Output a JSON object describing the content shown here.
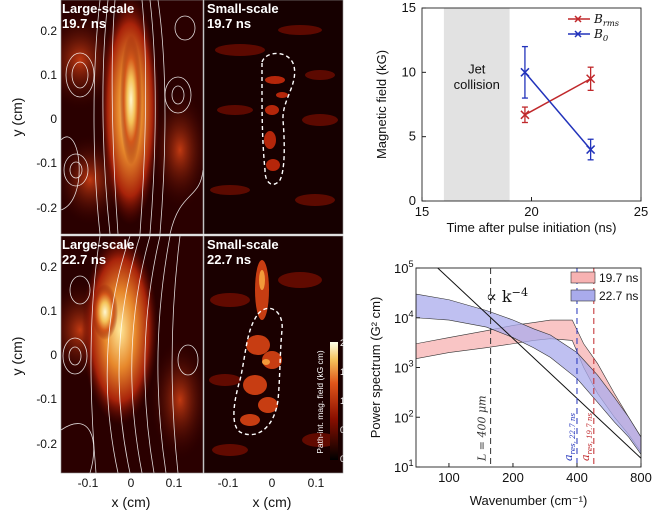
{
  "panels": {
    "top_left": {
      "scale": "Large-scale",
      "time": "19.7 ns"
    },
    "top_mid": {
      "scale": "Small-scale",
      "time": "19.7 ns"
    },
    "bottom_left": {
      "scale": "Large-scale",
      "time": "22.7 ns"
    },
    "bottom_mid": {
      "scale": "Small-scale",
      "time": "22.7 ns"
    }
  },
  "map_axes": {
    "xlabel": "x (cm)",
    "ylabel": "y (cm)",
    "xticks": [
      "-0.1",
      "0",
      "0.1"
    ],
    "yticks": [
      "0.2",
      "0.1",
      "0",
      "-0.1",
      "-0.2"
    ]
  },
  "colorbar": {
    "label": "Path-int. mag. field (kG cm)",
    "ticks": [
      "2",
      "1.5",
      "1",
      "0.5",
      "0"
    ]
  },
  "colors": {
    "red": "#c0282b",
    "blue": "#2233bb",
    "shade": "#e2e2e2",
    "pink": "#f7b2b2",
    "lavender": "#a9abec"
  },
  "chart_data": [
    {
      "type": "line",
      "xlabel": "Time after pulse initiation (ns)",
      "ylabel": "Magnetic field (kG)",
      "xlim": [
        15,
        25
      ],
      "ylim": [
        0,
        15
      ],
      "xticks": [
        15,
        20,
        25
      ],
      "yticks": [
        0,
        5,
        10,
        15
      ],
      "shaded_region": {
        "x": [
          16,
          19
        ],
        "label_line1": "Jet",
        "label_line2": "collision"
      },
      "legend_position": "top-right",
      "series": [
        {
          "name": "B_rms",
          "legend_main": "B",
          "legend_sub": "rms",
          "color": "#c0282b",
          "x": [
            19.7,
            22.7
          ],
          "y": [
            6.7,
            9.5
          ],
          "err": [
            0.6,
            0.9
          ]
        },
        {
          "name": "B_0",
          "legend_main": "B",
          "legend_sub": "0",
          "color": "#2233bb",
          "x": [
            19.7,
            22.7
          ],
          "y": [
            10.0,
            4.0
          ],
          "err": [
            2.0,
            0.8
          ]
        }
      ]
    },
    {
      "type": "area",
      "xlabel": "Wavenumber (cm⁻¹)",
      "ylabel": "Power spectrum (G² cm)",
      "x_scale": "log",
      "y_scale": "log",
      "xlim": [
        70,
        800
      ],
      "ylim": [
        10,
        100000
      ],
      "xticks": [
        100,
        200,
        400,
        800
      ],
      "yticks": [
        10,
        100,
        1000,
        10000,
        100000
      ],
      "ytick_labels": [
        [
          "10",
          "1"
        ],
        [
          "10",
          "2"
        ],
        [
          "10",
          "3"
        ],
        [
          "10",
          "4"
        ],
        [
          "10",
          "5"
        ]
      ],
      "legend_position": "top-right",
      "power_law": {
        "label": "∝ k",
        "exponent": "−4",
        "x": [
          80,
          800
        ],
        "y": [
          150000,
          15
        ]
      },
      "vlines": [
        {
          "x": 157,
          "label": "L = 400 μm",
          "color": "#333333"
        },
        {
          "x": 400,
          "label": "a",
          "sub": "res, 22.7 ns",
          "color": "#2233bb"
        },
        {
          "x": 480,
          "label": "a",
          "sub": "res, 19.7 ns",
          "color": "#c0282b"
        }
      ],
      "series": [
        {
          "name": "19.7 ns",
          "color": "#f7b2b2",
          "x": [
            70,
            100,
            150,
            200,
            250,
            300,
            380,
            430,
            500,
            600,
            700,
            800
          ],
          "upper": [
            3000,
            4000,
            5500,
            7000,
            8000,
            9000,
            9000,
            3000,
            1200,
            300,
            100,
            40
          ],
          "lower": [
            1500,
            2000,
            2500,
            3000,
            3500,
            3800,
            3500,
            1000,
            300,
            100,
            45,
            20
          ]
        },
        {
          "name": "22.7 ns",
          "color": "#a9abec",
          "x": [
            70,
            100,
            150,
            200,
            250,
            300,
            400,
            500,
            600,
            700,
            800
          ],
          "upper": [
            30000,
            23000,
            14000,
            9000,
            6000,
            4500,
            2000,
            700,
            250,
            100,
            40
          ],
          "lower": [
            10000,
            9000,
            6500,
            4000,
            2500,
            1600,
            600,
            200,
            80,
            40,
            18
          ]
        }
      ]
    }
  ]
}
